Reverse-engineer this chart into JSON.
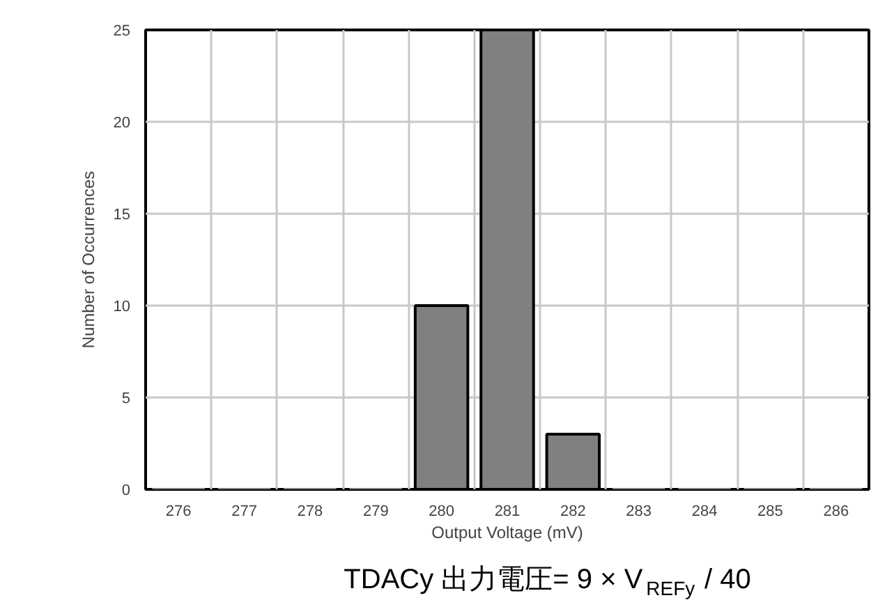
{
  "chart_data": {
    "type": "bar",
    "categories": [
      "276",
      "277",
      "278",
      "279",
      "280",
      "281",
      "282",
      "283",
      "284",
      "285",
      "286"
    ],
    "values": [
      0,
      0,
      0,
      0,
      10,
      25,
      3,
      0,
      0,
      0,
      0
    ],
    "color": "#808080",
    "xlabel": "Output Voltage (mV)",
    "ylabel": "Number of Occurrences",
    "ylim": [
      0,
      25
    ],
    "yticks": [
      0,
      5,
      10,
      15,
      20,
      25
    ],
    "grid": true,
    "annotations": [
      "TDACy 出力電圧= 9 × V$_{REFy}$ / 40"
    ]
  }
}
